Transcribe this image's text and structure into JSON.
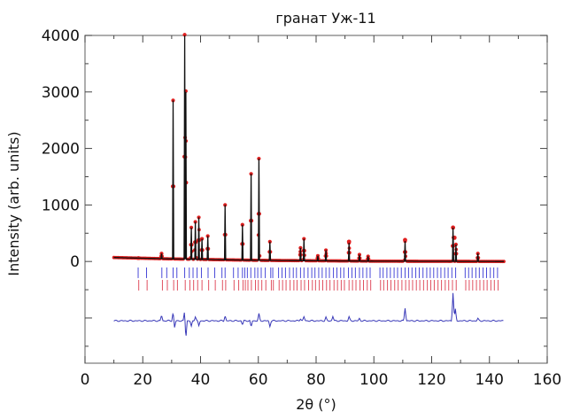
{
  "chart_data": {
    "type": "line",
    "title": "гранат Уж-11",
    "xlabel": "2θ (°)",
    "ylabel": "Intensity (arb. units)",
    "xlim": [
      0,
      160
    ],
    "ylim": [
      -1800,
      4000
    ],
    "x_ticks": [
      "0",
      "20",
      "40",
      "60",
      "80",
      "100",
      "120",
      "140",
      "160"
    ],
    "y_ticks": [
      "0",
      "1000",
      "2000",
      "3000",
      "4000"
    ],
    "grid": false,
    "legend": "none",
    "colors": {
      "observed": "#e02020",
      "calculated": "#111111",
      "reflections_phase1": "#4a4ad8",
      "reflections_phase2": "#e05060",
      "difference": "#3838b8",
      "frame": "#777777"
    },
    "series": [
      {
        "role": "calculated",
        "style": "line",
        "peaks": [
          [
            18.5,
            60
          ],
          [
            26.5,
            140
          ],
          [
            30.5,
            2850
          ],
          [
            34.5,
            4000
          ],
          [
            34.9,
            3000
          ],
          [
            36.8,
            600
          ],
          [
            38.2,
            700
          ],
          [
            39.4,
            780
          ],
          [
            40.5,
            400
          ],
          [
            42.5,
            450
          ],
          [
            48.5,
            1000
          ],
          [
            54.5,
            650
          ],
          [
            57.5,
            1550
          ],
          [
            60.2,
            1820
          ],
          [
            64.0,
            350
          ],
          [
            74.6,
            240
          ],
          [
            75.8,
            400
          ],
          [
            80.6,
            100
          ],
          [
            83.4,
            200
          ],
          [
            91.4,
            330
          ],
          [
            95.0,
            120
          ],
          [
            98.0,
            90
          ],
          [
            110.8,
            360
          ],
          [
            127.4,
            600
          ],
          [
            128.4,
            300
          ],
          [
            136.0,
            140
          ]
        ],
        "background": [
          [
            10,
            70
          ],
          [
            30,
            45
          ],
          [
            60,
            20
          ],
          [
            100,
            5
          ],
          [
            145,
            0
          ]
        ]
      },
      {
        "role": "observed",
        "style": "markers",
        "note_values": "same profile as calculated, red dots",
        "extra_points": [
          [
            127.4,
            600
          ],
          [
            127.9,
            420
          ],
          [
            110.8,
            380
          ],
          [
            91.4,
            350
          ]
        ]
      },
      {
        "role": "reflections_phase1",
        "style": "ticks",
        "y_offset": -200,
        "positions": [
          18.4,
          21.3,
          26.6,
          28.3,
          30.5,
          31.8,
          34.5,
          36.1,
          37.4,
          38.8,
          40.3,
          42.6,
          44.9,
          47.4,
          48.5,
          51.4,
          53.0,
          54.5,
          55.3,
          56.2,
          57.4,
          58.8,
          59.8,
          61.0,
          62.4,
          64.3,
          65.0,
          67.0,
          68.2,
          69.4,
          70.8,
          72.1,
          73.2,
          74.6,
          75.8,
          77.2,
          78.5,
          79.6,
          80.9,
          82.1,
          83.4,
          84.6,
          86.0,
          87.2,
          88.5,
          89.6,
          91.2,
          92.4,
          93.6,
          95.0,
          96.2,
          97.5,
          98.7,
          102.1,
          103.2,
          104.5,
          105.7,
          107.0,
          108.2,
          109.5,
          110.8,
          112.0,
          113.2,
          114.5,
          115.7,
          117.0,
          118.3,
          119.5,
          120.7,
          122.0,
          123.2,
          124.5,
          125.7,
          127.0,
          128.3,
          131.6,
          132.8,
          134.0,
          135.3,
          136.5,
          137.8,
          139.0,
          140.3,
          141.5,
          142.8
        ]
      },
      {
        "role": "reflections_phase2",
        "style": "ticks",
        "y_offset": -420,
        "positions": [
          18.6,
          21.5,
          26.8,
          28.5,
          30.7,
          32.0,
          34.7,
          36.3,
          37.6,
          39.0,
          40.5,
          42.8,
          45.1,
          47.6,
          48.7,
          51.6,
          53.2,
          54.7,
          55.5,
          56.4,
          57.6,
          59.0,
          60.0,
          61.2,
          62.6,
          64.5,
          65.2,
          67.2,
          68.4,
          69.6,
          71.0,
          72.3,
          73.4,
          74.8,
          76.0,
          77.4,
          78.7,
          79.8,
          81.1,
          82.3,
          83.6,
          84.8,
          86.2,
          87.4,
          88.7,
          89.8,
          91.4,
          92.6,
          93.8,
          95.2,
          96.4,
          97.7,
          98.9,
          102.3,
          103.4,
          104.7,
          105.9,
          107.2,
          108.4,
          109.7,
          111.0,
          112.2,
          113.4,
          114.7,
          115.9,
          117.2,
          118.5,
          119.7,
          120.9,
          122.2,
          123.4,
          124.7,
          125.9,
          127.2,
          128.5,
          131.8,
          133.0,
          134.2,
          135.5,
          136.7,
          138.0,
          139.2,
          140.5,
          141.7,
          143.0
        ]
      },
      {
        "role": "difference",
        "style": "line",
        "baseline": -1050,
        "x_range": [
          10,
          145
        ],
        "spikes": [
          [
            26.5,
            100
          ],
          [
            30.5,
            150
          ],
          [
            31.0,
            -120
          ],
          [
            34.5,
            180
          ],
          [
            34.9,
            -320
          ],
          [
            36.8,
            -100
          ],
          [
            38.2,
            80
          ],
          [
            39.4,
            -90
          ],
          [
            48.5,
            90
          ],
          [
            54.5,
            -70
          ],
          [
            57.5,
            -110
          ],
          [
            60.2,
            120
          ],
          [
            64.0,
            -100
          ],
          [
            74.6,
            40
          ],
          [
            75.8,
            70
          ],
          [
            83.4,
            60
          ],
          [
            85.8,
            80
          ],
          [
            91.4,
            70
          ],
          [
            95.0,
            40
          ],
          [
            110.8,
            230
          ],
          [
            127.4,
            500
          ],
          [
            128.2,
            200
          ],
          [
            136.0,
            40
          ]
        ]
      }
    ]
  }
}
